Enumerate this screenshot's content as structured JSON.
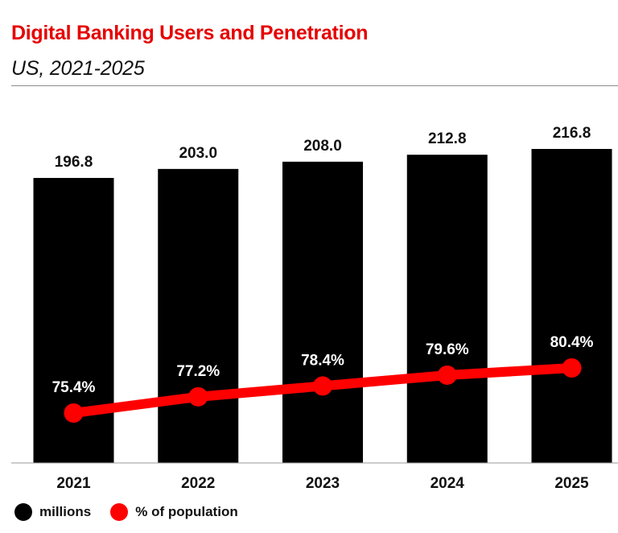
{
  "title": "Digital Banking Users and Penetration",
  "subtitle": "US, 2021-2025",
  "colors": {
    "title": "#e60000",
    "bars": "#000000",
    "line": "#ff0000"
  },
  "legend": {
    "bars_label": "millions",
    "line_label": "% of population"
  },
  "chart_data": {
    "type": "bar",
    "categories": [
      "2021",
      "2022",
      "2023",
      "2024",
      "2025"
    ],
    "series": [
      {
        "name": "millions",
        "type": "bar",
        "values": [
          196.8,
          203.0,
          208.0,
          212.8,
          216.8
        ],
        "labels": [
          "196.8",
          "203.0",
          "208.0",
          "212.8",
          "216.8"
        ]
      },
      {
        "name": "% of population",
        "type": "line",
        "values": [
          75.4,
          77.2,
          78.4,
          79.6,
          80.4
        ],
        "labels": [
          "75.4%",
          "77.2%",
          "78.4%",
          "79.6%",
          "80.4%"
        ]
      }
    ],
    "grid": false,
    "legend_position": "bottom-left"
  }
}
